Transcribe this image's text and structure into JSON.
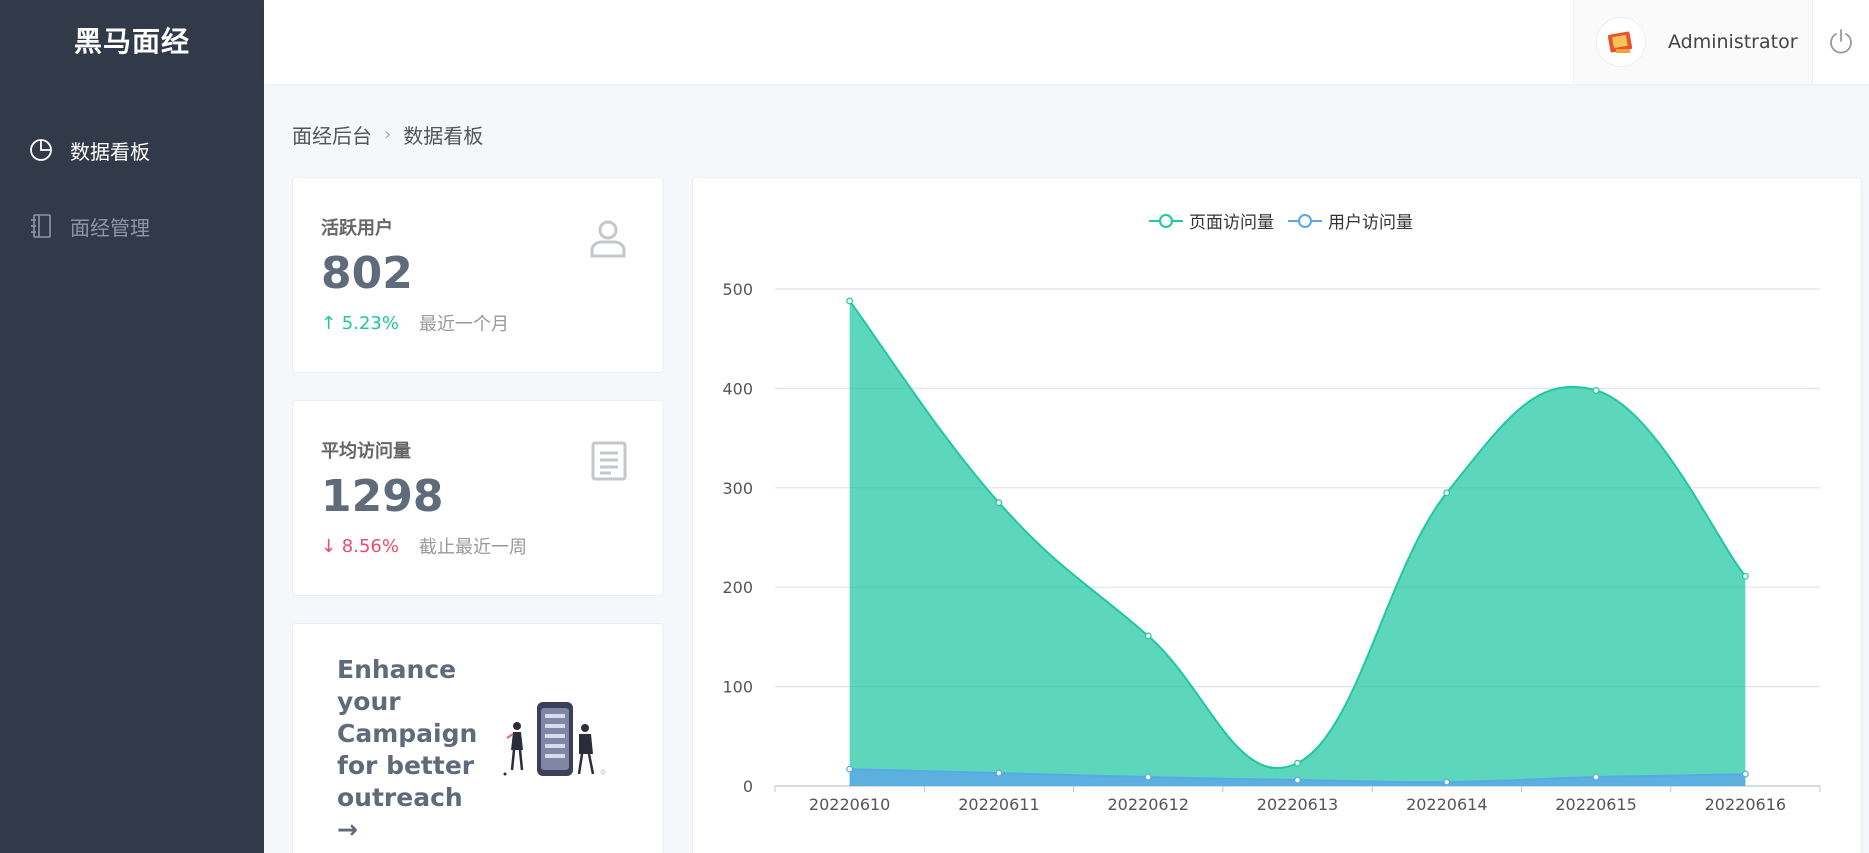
{
  "app": {
    "logo": "黑马面经"
  },
  "sidebar": {
    "items": [
      {
        "label": "数据看板",
        "icon": "pie-chart-icon",
        "active": true
      },
      {
        "label": "面经管理",
        "icon": "notebook-icon",
        "active": false
      }
    ]
  },
  "header": {
    "user_name": "Administrator"
  },
  "breadcrumb": {
    "root": "面经后台",
    "current": "数据看板"
  },
  "stats": [
    {
      "title": "活跃用户",
      "value": "802",
      "trend": "↑ 5.23%",
      "trend_dir": "up",
      "note": "最近一个月",
      "icon": "user-icon"
    },
    {
      "title": "平均访问量",
      "value": "1298",
      "trend": "↓ 8.56%",
      "trend_dir": "down",
      "note": "截止最近一周",
      "icon": "document-icon"
    }
  ],
  "promo": {
    "text": "Enhance your Campaign for better outreach →"
  },
  "colors": {
    "page_views": "#1fc8a1",
    "user_views": "#5aa9e6"
  },
  "chart_data": {
    "type": "area",
    "x": [
      "20220610",
      "20220611",
      "20220612",
      "20220613",
      "20220614",
      "20220615",
      "20220616"
    ],
    "series": [
      {
        "name": "页面访问量",
        "values": [
          488,
          285,
          151,
          23,
          295,
          398,
          211
        ]
      },
      {
        "name": "用户访问量",
        "values": [
          17,
          13,
          9,
          6,
          4,
          9,
          12
        ]
      }
    ],
    "ylim": [
      0,
      500
    ],
    "yticks": [
      0,
      100,
      200,
      300,
      400,
      500
    ],
    "legend": "top-center",
    "grid": true
  }
}
